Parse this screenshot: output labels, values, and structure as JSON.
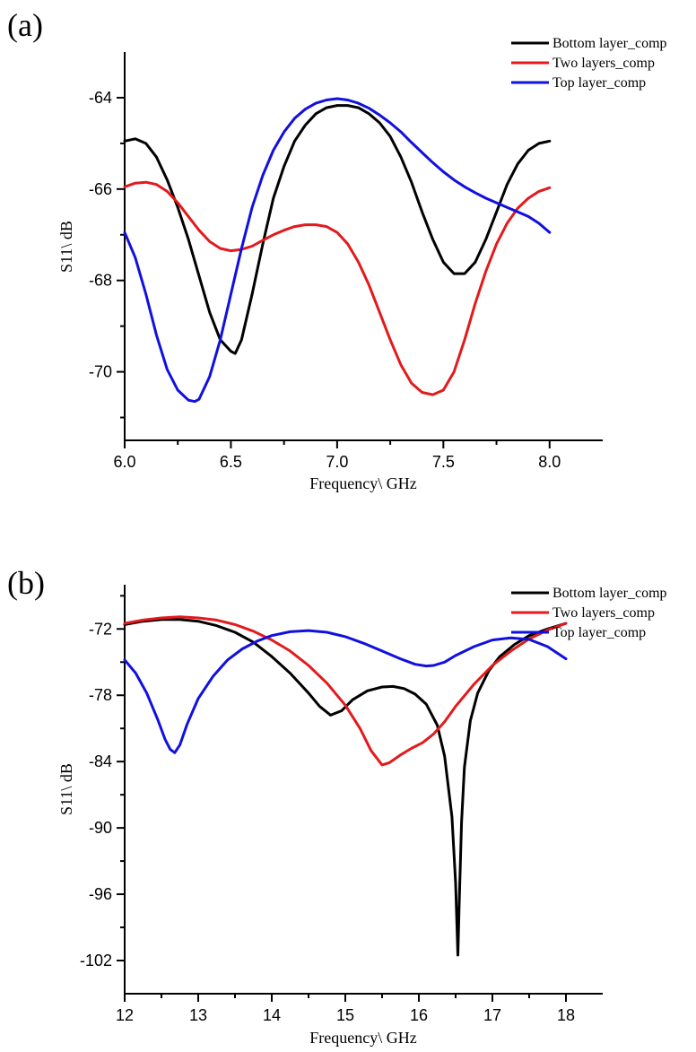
{
  "colors": {
    "bottom": "#000000",
    "two": "#e31a1c",
    "top": "#1010e0"
  },
  "chart_data": [
    {
      "panel_label": "(a)",
      "type": "line",
      "xlabel": "Frequency\\ GHz",
      "ylabel": "S11\\ dB",
      "xlim": [
        6.0,
        8.25
      ],
      "ylim": [
        -71.5,
        -63.0
      ],
      "xticks": [
        6.0,
        6.5,
        7.0,
        7.5,
        8.0
      ],
      "xtick_labels": [
        "6.0",
        "6.5",
        "7.0",
        "7.5",
        "8.0"
      ],
      "yticks": [
        -64,
        -66,
        -68,
        -70
      ],
      "ytick_labels": [
        "-64",
        "-66",
        "-68",
        "-70"
      ],
      "grid": false,
      "legend_position": "top-right",
      "series": [
        {
          "name": "Bottom layer_comp",
          "color_key": "bottom",
          "x": [
            6.0,
            6.05,
            6.1,
            6.15,
            6.2,
            6.25,
            6.3,
            6.35,
            6.4,
            6.45,
            6.5,
            6.52,
            6.55,
            6.6,
            6.65,
            6.7,
            6.75,
            6.8,
            6.85,
            6.9,
            6.95,
            7.0,
            7.05,
            7.1,
            7.15,
            7.2,
            7.25,
            7.3,
            7.35,
            7.4,
            7.45,
            7.5,
            7.55,
            7.6,
            7.65,
            7.7,
            7.75,
            7.8,
            7.85,
            7.9,
            7.95,
            8.0
          ],
          "y": [
            -64.95,
            -64.9,
            -65.0,
            -65.3,
            -65.8,
            -66.4,
            -67.1,
            -67.9,
            -68.7,
            -69.3,
            -69.55,
            -69.6,
            -69.3,
            -68.3,
            -67.2,
            -66.2,
            -65.5,
            -64.95,
            -64.6,
            -64.35,
            -64.22,
            -64.17,
            -64.17,
            -64.22,
            -64.35,
            -64.55,
            -64.85,
            -65.3,
            -65.85,
            -66.5,
            -67.1,
            -67.6,
            -67.85,
            -67.85,
            -67.6,
            -67.1,
            -66.5,
            -65.9,
            -65.45,
            -65.15,
            -65.0,
            -64.95
          ]
        },
        {
          "name": "Two layers_comp",
          "color_key": "two",
          "x": [
            6.0,
            6.05,
            6.1,
            6.15,
            6.2,
            6.25,
            6.3,
            6.35,
            6.4,
            6.45,
            6.5,
            6.55,
            6.6,
            6.65,
            6.7,
            6.75,
            6.8,
            6.85,
            6.9,
            6.95,
            7.0,
            7.05,
            7.1,
            7.15,
            7.2,
            7.25,
            7.3,
            7.35,
            7.4,
            7.45,
            7.5,
            7.55,
            7.6,
            7.65,
            7.7,
            7.75,
            7.8,
            7.85,
            7.9,
            7.95,
            8.0
          ],
          "y": [
            -65.95,
            -65.87,
            -65.85,
            -65.9,
            -66.05,
            -66.3,
            -66.6,
            -66.9,
            -67.15,
            -67.3,
            -67.35,
            -67.32,
            -67.25,
            -67.12,
            -67.0,
            -66.9,
            -66.82,
            -66.78,
            -66.78,
            -66.82,
            -66.95,
            -67.2,
            -67.6,
            -68.1,
            -68.7,
            -69.3,
            -69.85,
            -70.25,
            -70.45,
            -70.5,
            -70.4,
            -70.0,
            -69.3,
            -68.5,
            -67.8,
            -67.2,
            -66.75,
            -66.42,
            -66.2,
            -66.05,
            -65.97
          ]
        },
        {
          "name": "Top layer_comp",
          "color_key": "top",
          "x": [
            6.0,
            6.05,
            6.1,
            6.15,
            6.2,
            6.25,
            6.3,
            6.33,
            6.35,
            6.4,
            6.45,
            6.5,
            6.55,
            6.6,
            6.65,
            6.7,
            6.75,
            6.8,
            6.85,
            6.9,
            6.95,
            7.0,
            7.05,
            7.1,
            7.15,
            7.2,
            7.25,
            7.3,
            7.35,
            7.4,
            7.45,
            7.5,
            7.55,
            7.6,
            7.65,
            7.7,
            7.75,
            7.8,
            7.85,
            7.9,
            7.95,
            8.0
          ],
          "y": [
            -66.95,
            -67.5,
            -68.3,
            -69.2,
            -69.95,
            -70.4,
            -70.62,
            -70.65,
            -70.6,
            -70.1,
            -69.3,
            -68.3,
            -67.3,
            -66.4,
            -65.7,
            -65.15,
            -64.75,
            -64.45,
            -64.25,
            -64.12,
            -64.05,
            -64.02,
            -64.05,
            -64.12,
            -64.23,
            -64.38,
            -64.55,
            -64.75,
            -64.98,
            -65.2,
            -65.42,
            -65.62,
            -65.8,
            -65.95,
            -66.08,
            -66.2,
            -66.3,
            -66.4,
            -66.5,
            -66.6,
            -66.75,
            -66.95
          ]
        }
      ]
    },
    {
      "panel_label": "(b)",
      "type": "line",
      "xlabel": "Frequency\\ GHz",
      "ylabel": "S11\\ dB",
      "xlim": [
        12.0,
        18.5
      ],
      "ylim": [
        -105,
        -68
      ],
      "xticks": [
        12,
        13,
        14,
        15,
        16,
        17,
        18
      ],
      "xtick_labels": [
        "12",
        "13",
        "14",
        "15",
        "16",
        "17",
        "18"
      ],
      "yticks": [
        -72,
        -78,
        -84,
        -90,
        -96,
        -102
      ],
      "ytick_labels": [
        "-72",
        "-78",
        "-84",
        "-90",
        "-96",
        "-102"
      ],
      "grid": false,
      "legend_position": "top-right",
      "series": [
        {
          "name": "Bottom layer_comp",
          "color_key": "bottom",
          "x": [
            12.0,
            12.25,
            12.5,
            12.75,
            13.0,
            13.25,
            13.5,
            13.75,
            14.0,
            14.25,
            14.5,
            14.65,
            14.8,
            14.95,
            15.1,
            15.3,
            15.5,
            15.65,
            15.8,
            15.95,
            16.1,
            16.25,
            16.35,
            16.45,
            16.5,
            16.53,
            16.55,
            16.58,
            16.62,
            16.7,
            16.8,
            16.95,
            17.1,
            17.3,
            17.5,
            17.75,
            18.0
          ],
          "y": [
            -71.6,
            -71.3,
            -71.15,
            -71.15,
            -71.3,
            -71.7,
            -72.3,
            -73.2,
            -74.5,
            -76.0,
            -77.8,
            -79.0,
            -79.8,
            -79.4,
            -78.4,
            -77.6,
            -77.25,
            -77.2,
            -77.4,
            -77.9,
            -78.8,
            -80.7,
            -83.5,
            -89.0,
            -95.0,
            -101.5,
            -96.5,
            -89.5,
            -84.5,
            -80.3,
            -77.8,
            -75.8,
            -74.5,
            -73.4,
            -72.6,
            -72.0,
            -71.5
          ]
        },
        {
          "name": "Two layers_comp",
          "color_key": "two",
          "x": [
            12.0,
            12.25,
            12.5,
            12.75,
            13.0,
            13.25,
            13.5,
            13.75,
            14.0,
            14.25,
            14.5,
            14.75,
            15.0,
            15.2,
            15.35,
            15.5,
            15.6,
            15.75,
            15.9,
            16.05,
            16.2,
            16.35,
            16.5,
            16.75,
            17.0,
            17.25,
            17.5,
            17.75,
            18.0
          ],
          "y": [
            -71.5,
            -71.2,
            -71.0,
            -70.9,
            -71.0,
            -71.2,
            -71.6,
            -72.2,
            -73.0,
            -74.0,
            -75.3,
            -76.9,
            -78.9,
            -81.0,
            -83.0,
            -84.3,
            -84.1,
            -83.4,
            -82.8,
            -82.3,
            -81.5,
            -80.4,
            -79.0,
            -77.0,
            -75.3,
            -74.0,
            -72.9,
            -72.1,
            -71.5
          ]
        },
        {
          "name": "Top layer_comp",
          "color_key": "top",
          "x": [
            12.0,
            12.15,
            12.3,
            12.45,
            12.55,
            12.62,
            12.68,
            12.75,
            12.85,
            13.0,
            13.2,
            13.4,
            13.6,
            13.8,
            14.0,
            14.25,
            14.5,
            14.75,
            15.0,
            15.25,
            15.5,
            15.75,
            15.95,
            16.1,
            16.2,
            16.35,
            16.5,
            16.75,
            17.0,
            17.25,
            17.5,
            17.75,
            18.0
          ],
          "y": [
            -74.8,
            -76.0,
            -77.8,
            -80.2,
            -82.0,
            -82.9,
            -83.2,
            -82.5,
            -80.6,
            -78.3,
            -76.3,
            -74.8,
            -73.8,
            -73.1,
            -72.6,
            -72.25,
            -72.15,
            -72.3,
            -72.7,
            -73.3,
            -74.0,
            -74.7,
            -75.2,
            -75.35,
            -75.3,
            -75.0,
            -74.4,
            -73.6,
            -73.0,
            -72.8,
            -72.95,
            -73.6,
            -74.7
          ]
        }
      ]
    }
  ]
}
